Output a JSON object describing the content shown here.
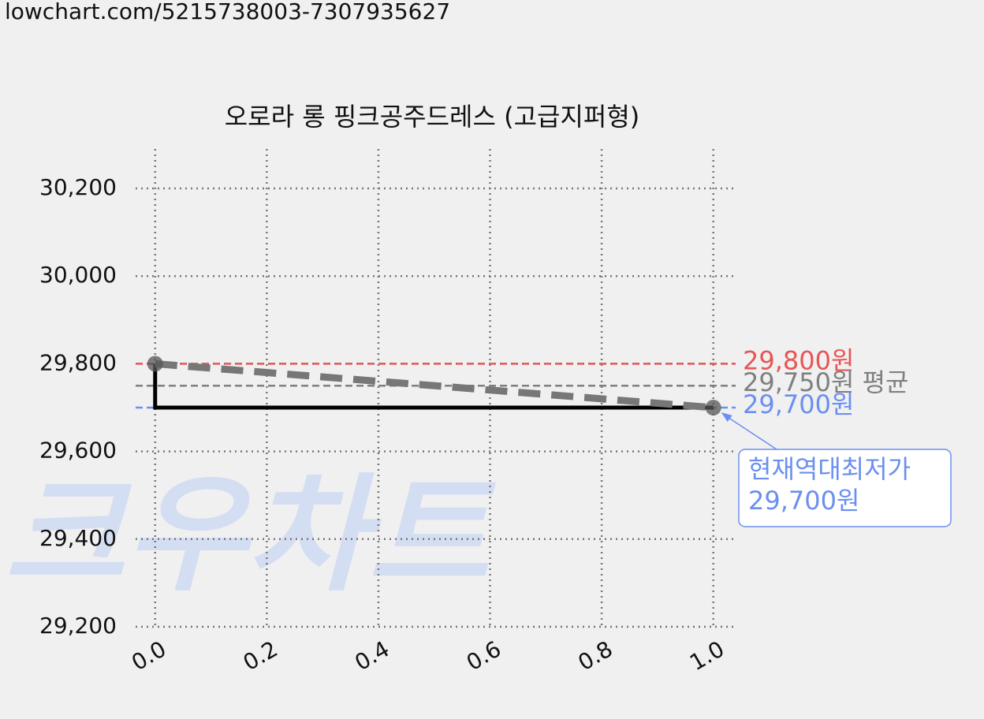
{
  "url": "lowchart.com/5215738003-7307935627",
  "watermark": "크우차트",
  "chart_data": {
    "type": "line",
    "title": "오로라 롱 핑크공주드레스 (고급지퍼형)",
    "x": [
      0,
      1
    ],
    "series": [
      {
        "color": "#000000",
        "style": "step",
        "values": [
          29800,
          29700
        ]
      },
      {
        "color": "#777777",
        "style": "dashed",
        "values": [
          29800,
          29700
        ]
      }
    ],
    "hlines": [
      {
        "value": 29800,
        "label": "29,800원",
        "color": "#e85555"
      },
      {
        "value": 29750,
        "label": "29,750원 평균",
        "color": "#808080"
      },
      {
        "value": 29700,
        "label": "29,700원",
        "color": "#6b8ff0"
      }
    ],
    "annotation": {
      "text": [
        "현재역대최저가",
        "29,700원"
      ],
      "x": 1,
      "y": 29700,
      "color": "#6b8ff0"
    },
    "xlim": [
      -0.035,
      1.04
    ],
    "ylim": [
      29200,
      30290
    ],
    "xticks": [
      {
        "value": 0,
        "label": "0.0"
      },
      {
        "value": 0.2,
        "label": "0.2"
      },
      {
        "value": 0.4,
        "label": "0.4"
      },
      {
        "value": 0.6,
        "label": "0.6"
      },
      {
        "value": 0.8,
        "label": "0.8"
      },
      {
        "value": 1,
        "label": "1.0"
      }
    ],
    "yticks": [
      {
        "value": 29200,
        "label": "29,200"
      },
      {
        "value": 29400,
        "label": "29,400"
      },
      {
        "value": 29600,
        "label": "29,600"
      },
      {
        "value": 29800,
        "label": "29,800"
      },
      {
        "value": 30000,
        "label": "30,000"
      },
      {
        "value": 30200,
        "label": "30,200"
      }
    ],
    "grid": true
  }
}
